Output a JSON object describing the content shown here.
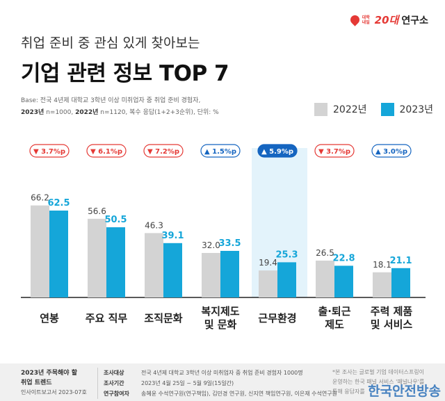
{
  "logo": {
    "line1": "대학",
    "line2": "내일",
    "number": "20대",
    "name": "연구소",
    "color": "#e53935"
  },
  "header": {
    "subtitle": "취업 준비 중 관심 있게 찾아보는",
    "title": "기업 관련 정보 TOP 7",
    "base_line1": "Base: 전국 4년제 대학교 3학년 이상 미취업자 중 취업 준비 경험자,",
    "base_line2_a": "2023년",
    "base_line2_b": " n=1000, ",
    "base_line2_c": "2022년",
    "base_line2_d": " n=1120, 복수 응답(1+2+3순위), 단위: %"
  },
  "chart_data": {
    "type": "bar",
    "categories": [
      "연봉",
      "주요 직무",
      "조직문화",
      "복지제도\n및 문화",
      "근무환경",
      "출·퇴근\n제도",
      "주력 제품\n및 서비스"
    ],
    "series": [
      {
        "name": "2022년",
        "color": "#d3d3d3",
        "values": [
          66.2,
          56.6,
          46.3,
          32.0,
          19.4,
          26.5,
          18.1
        ]
      },
      {
        "name": "2023년",
        "color": "#15a6d9",
        "values": [
          62.5,
          50.5,
          39.1,
          33.5,
          25.3,
          22.8,
          21.1
        ]
      }
    ],
    "changes": [
      {
        "direction": "down",
        "text": "3.7%p"
      },
      {
        "direction": "down",
        "text": "6.1%p"
      },
      {
        "direction": "down",
        "text": "7.2%p"
      },
      {
        "direction": "up",
        "text": "1.5%p"
      },
      {
        "direction": "up",
        "text": "5.9%p"
      },
      {
        "direction": "down",
        "text": "3.7%p"
      },
      {
        "direction": "up",
        "text": "3.0%p"
      }
    ],
    "highlight_index": 4,
    "colors": {
      "down": "#e53935",
      "up": "#1565c0",
      "highlight_band": "#e3f3fb"
    }
  },
  "footer": {
    "left_line1": "2023년 주목해야 할",
    "left_line2": "취업 트렌드",
    "left_line3": "인사이트보고서 2023-07호",
    "rows": [
      {
        "key": "조사대상",
        "value": "전국 4년제 대학교 3학년 이상 미취업자 중 취업 준비 경험자 1000명"
      },
      {
        "key": "조사기간",
        "value": "2023년 4월 25일 ~ 5월 9일(15일간)"
      },
      {
        "key": "연구참여자",
        "value": "송혜윤 수석연구원(연구책임), 김민경 연구원, 신지연 책임연구원, 이은재 수석연구원"
      }
    ],
    "right_line1": "*본 조사는 글로벌 기업 데이터스프링이",
    "right_line2": "운영하는 한국 패널 서비스 '패널나우'를",
    "right_line3": "통해 응답자를",
    "watermark": "한국안전방송"
  }
}
